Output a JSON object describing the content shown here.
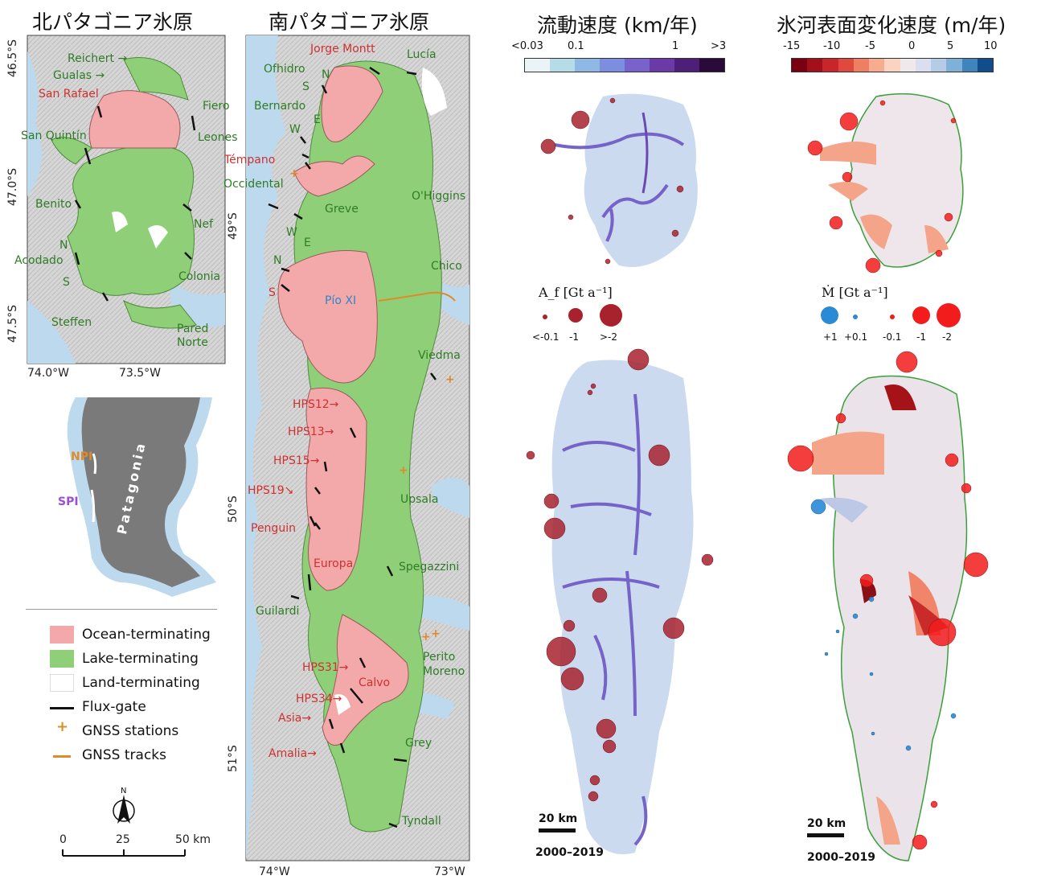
{
  "titles": {
    "npi": "北パタゴニア氷原",
    "spi": "南パタゴニア氷原",
    "velocity": "流動速度 (km/年)",
    "dhdt": "氷河表面変化速度 (m/年)"
  },
  "colors": {
    "ocean": "#f3a9a9",
    "lake": "#8fcf78",
    "land": "#ffffff",
    "water": "#bcd9ee",
    "terrain": "#d3d3d3",
    "fluxgate": "#111111",
    "gnss": "#e08a2a",
    "label_green": "#2e7d25",
    "label_red": "#d03030"
  },
  "npi_map": {
    "lat_ticks": [
      "46.5°S",
      "47.0°S",
      "47.5°S"
    ],
    "lon_ticks": [
      "74.0°W",
      "73.5°W"
    ],
    "labels_green": [
      "Reichert →",
      "Gualas →",
      "Fiero",
      "San Quintín",
      "Leones",
      "Benito",
      "Nef",
      "N",
      "Acodado",
      "S",
      "Colonia",
      "Steffen",
      "Pared",
      "Norte"
    ],
    "labels_red": [
      "San Rafael"
    ]
  },
  "spi_map": {
    "lat_ticks": [
      "49°S",
      "50°S",
      "51°S"
    ],
    "lon_ticks": [
      "74°W",
      "73°W"
    ],
    "labels_green": [
      "Lucía",
      "Ofhidro",
      "S",
      "N",
      "Bernardo",
      "E",
      "W",
      "Occidental",
      "O'Higgins",
      "Greve",
      "W",
      "E",
      "N",
      "Chico",
      "Viedma",
      "Upsala",
      "Spegazzini",
      "Guilardi",
      "Perito",
      "Moreno",
      "Grey",
      "Tyndall"
    ],
    "labels_red": [
      "Jorge Montt",
      "Témpano",
      "S",
      "HPS12→",
      "HPS13→",
      "HPS15→",
      "HPS19↘",
      "Penguin",
      "Europa",
      "HPS31→",
      "Calvo",
      "HPS34→",
      "Asia→",
      "Amalia→"
    ],
    "labels_blue": [
      "Pío XI"
    ]
  },
  "inset": {
    "region": "Patagonia",
    "npi": "NPI",
    "spi": "SPI",
    "npi_color": "#e08a2a",
    "spi_color": "#9b4fd6"
  },
  "legend": {
    "items": [
      {
        "label": "Ocean-terminating",
        "swatch": "#f3a9a9"
      },
      {
        "label": "Lake-terminating",
        "swatch": "#8fcf78"
      },
      {
        "label": "Land-terminating",
        "swatch": "#ffffff"
      },
      {
        "label": "Flux-gate",
        "swatch": "#111111"
      },
      {
        "label": "GNSS stations",
        "swatch": "#e08a2a"
      },
      {
        "label": "GNSS tracks",
        "swatch": "#e08a2a"
      }
    ],
    "north": "N",
    "scale_ticks": [
      "0",
      "25",
      "50 km"
    ]
  },
  "velocity_panel": {
    "colorbar_ticks": [
      "<0.03",
      "0.1",
      "1",
      ">3"
    ],
    "colorbar_colors": [
      "#eaf4f6",
      "#b6dce8",
      "#8fb8e6",
      "#7b8ee0",
      "#7a62cc",
      "#6a3aa8",
      "#4e1f78",
      "#2a0a3a"
    ],
    "size_title": "A_f [Gt a⁻¹]",
    "size_labels": [
      "<-0.1",
      "-1",
      ">-2"
    ],
    "scale": "20 km",
    "period": "2000–2019",
    "bubble_color": "#a8222e"
  },
  "dhdt_panel": {
    "colorbar_ticks": [
      "-15",
      "-10",
      "-5",
      "0",
      "5",
      "10"
    ],
    "colorbar_colors": [
      "#7a0010",
      "#a40f1c",
      "#c9262a",
      "#e2493e",
      "#f07e62",
      "#f7ac90",
      "#fbd3c1",
      "#f0e9ec",
      "#d9dff0",
      "#b5cbe6",
      "#7fb0d8",
      "#3f84bd",
      "#114d8a"
    ],
    "size_title": "Ṁ [Gt a⁻¹]",
    "size_labels": [
      "+1",
      "+0.1",
      "-0.1",
      "-1",
      "-2"
    ],
    "scale": "20 km",
    "period": "2000–2019",
    "pos_color": "#2a8ad6",
    "neg_color": "#f21c1c"
  }
}
